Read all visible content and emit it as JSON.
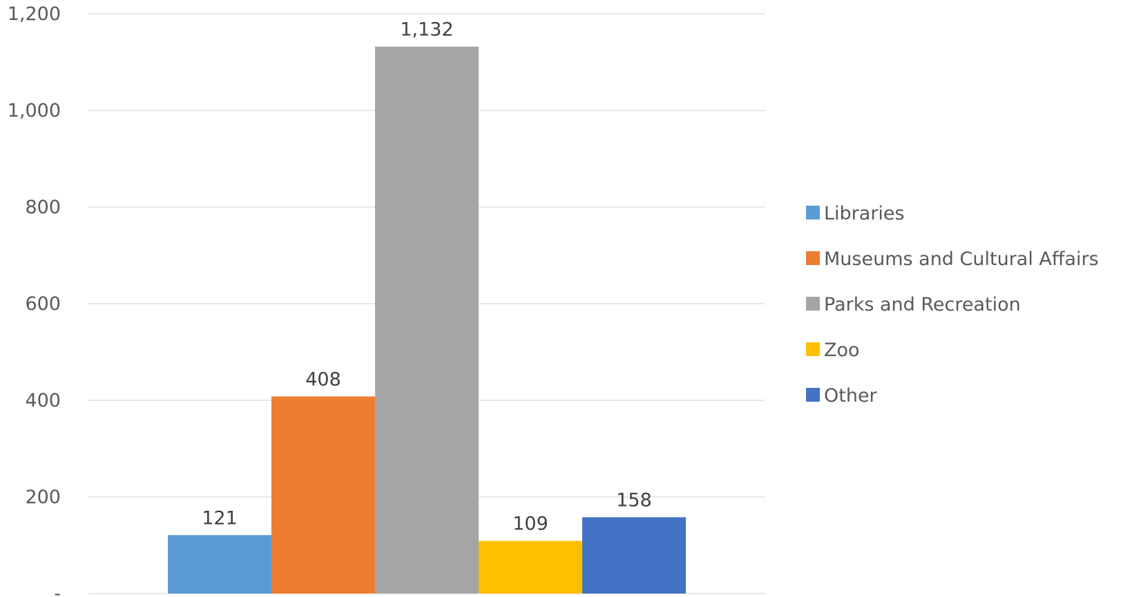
{
  "chart_data": {
    "type": "bar",
    "title": "",
    "xlabel": "",
    "ylabel": "",
    "categories": [
      ""
    ],
    "series": [
      {
        "name": "Libraries",
        "values": [
          121
        ],
        "label": "121",
        "color": "#5b9bd5"
      },
      {
        "name": "Museums and Cultural Affairs",
        "values": [
          408
        ],
        "label": "408",
        "color": "#ed7d31"
      },
      {
        "name": "Parks and Recreation",
        "values": [
          1132
        ],
        "label": "1,132",
        "color": "#a5a5a5"
      },
      {
        "name": "Zoo",
        "values": [
          109
        ],
        "label": "109",
        "color": "#ffc000"
      },
      {
        "name": "Other",
        "values": [
          158
        ],
        "label": "158",
        "color": "#4472c4"
      }
    ],
    "ylim": [
      0,
      1200
    ],
    "yticks": [
      {
        "value": 0,
        "label": "-"
      },
      {
        "value": 200,
        "label": "200"
      },
      {
        "value": 400,
        "label": "400"
      },
      {
        "value": 600,
        "label": "600"
      },
      {
        "value": 800,
        "label": "800"
      },
      {
        "value": 1000,
        "label": "1,000"
      },
      {
        "value": 1200,
        "label": "1,200"
      }
    ],
    "grid": true,
    "legend_position": "right"
  }
}
